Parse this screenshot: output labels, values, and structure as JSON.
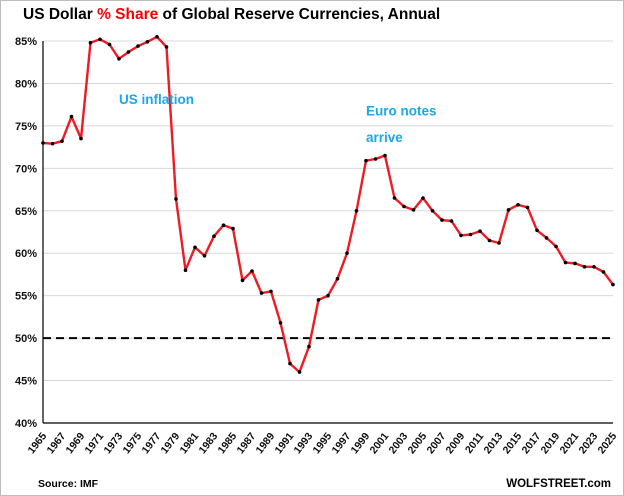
{
  "title": {
    "part1": "US Dollar ",
    "part2": "% Share",
    "part3": " of Global Reserve Currencies, Annual"
  },
  "footer": {
    "source": "Source: IMF",
    "brand": "WOLFSTREET.com"
  },
  "colors": {
    "line": "#ed1c24",
    "marker": "#000000",
    "title_accent": "#f50000",
    "annotation": "#1ba7e8",
    "grid": "#d8d8d8",
    "axis": "#000000",
    "reference_dashed": "#000000"
  },
  "chart_data": {
    "type": "line",
    "title": "US Dollar % Share of Global Reserve Currencies, Annual",
    "xlabel": "",
    "ylabel": "",
    "ylim": [
      40,
      85
    ],
    "grid": true,
    "legend_position": "none",
    "reference_line_y": 50,
    "yticks": [
      "40%",
      "45%",
      "50%",
      "55%",
      "60%",
      "65%",
      "70%",
      "75%",
      "80%",
      "85%"
    ],
    "xticks": [
      "1965",
      "1967",
      "1969",
      "1971",
      "1973",
      "1975",
      "1977",
      "1979",
      "1981",
      "1983",
      "1985",
      "1987",
      "1989",
      "1991",
      "1993",
      "1995",
      "1997",
      "1999",
      "2001",
      "2003",
      "2005",
      "2007",
      "2009",
      "2011",
      "2013",
      "2015",
      "2017",
      "2019",
      "2021",
      "2023",
      "2025"
    ],
    "x": [
      1965,
      1966,
      1967,
      1968,
      1969,
      1970,
      1971,
      1972,
      1973,
      1974,
      1975,
      1976,
      1977,
      1978,
      1979,
      1980,
      1981,
      1982,
      1983,
      1984,
      1985,
      1986,
      1987,
      1988,
      1989,
      1990,
      1991,
      1992,
      1993,
      1994,
      1995,
      1996,
      1997,
      1998,
      1999,
      2000,
      2001,
      2002,
      2003,
      2004,
      2005,
      2006,
      2007,
      2008,
      2009,
      2010,
      2011,
      2012,
      2013,
      2014,
      2015,
      2016,
      2017,
      2018,
      2019,
      2020,
      2021,
      2022,
      2023,
      2024,
      2025
    ],
    "values": [
      73.0,
      72.9,
      73.2,
      76.1,
      73.5,
      84.8,
      85.2,
      84.6,
      82.9,
      83.7,
      84.4,
      84.9,
      85.5,
      84.3,
      66.4,
      58.0,
      60.7,
      59.7,
      62.0,
      63.3,
      62.9,
      56.8,
      57.9,
      55.3,
      55.5,
      51.8,
      47.0,
      46.0,
      49.0,
      54.5,
      55.0,
      57.0,
      60.0,
      65.0,
      70.9,
      71.1,
      71.5,
      66.5,
      65.5,
      65.1,
      66.5,
      65.0,
      63.9,
      63.8,
      62.1,
      62.2,
      62.6,
      61.5,
      61.2,
      65.1,
      65.7,
      65.4,
      62.7,
      61.8,
      60.8,
      58.9,
      58.8,
      58.4,
      58.4,
      57.8,
      56.3
    ],
    "annotations": [
      {
        "text": "US inflation",
        "year": 1973.0,
        "pct": 77.6
      },
      {
        "text": "Euro notes",
        "year": 1999.0,
        "pct": 76.2
      },
      {
        "text": "arrive",
        "year": 1999.0,
        "pct": 73.1
      }
    ]
  }
}
